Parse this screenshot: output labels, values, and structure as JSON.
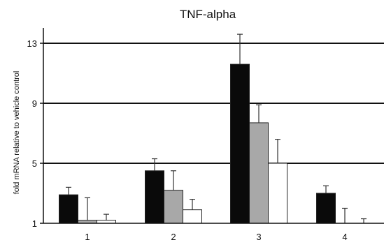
{
  "chart_data": {
    "type": "bar",
    "title": "TNF-alpha",
    "xlabel": "",
    "ylabel": "fold mRNA relative to vehicle control",
    "categories": [
      "1",
      "2",
      "3",
      "4"
    ],
    "ylim": [
      1,
      14
    ],
    "yticks": [
      1,
      5,
      9,
      13
    ],
    "grid": true,
    "legend": "none",
    "series": [
      {
        "values": [
          2.9,
          4.5,
          11.6,
          3.0
        ],
        "errors": [
          0.5,
          0.8,
          2.0,
          0.5
        ],
        "color": "#0a0a0a"
      },
      {
        "values": [
          1.2,
          3.2,
          7.7,
          1.0
        ],
        "errors": [
          1.5,
          1.3,
          1.2,
          1.0
        ],
        "color": "#a8a8a8"
      },
      {
        "values": [
          1.2,
          1.9,
          5.0,
          1.0
        ],
        "errors": [
          0.4,
          0.7,
          1.6,
          0.3
        ],
        "color": "#ffffff"
      }
    ]
  }
}
